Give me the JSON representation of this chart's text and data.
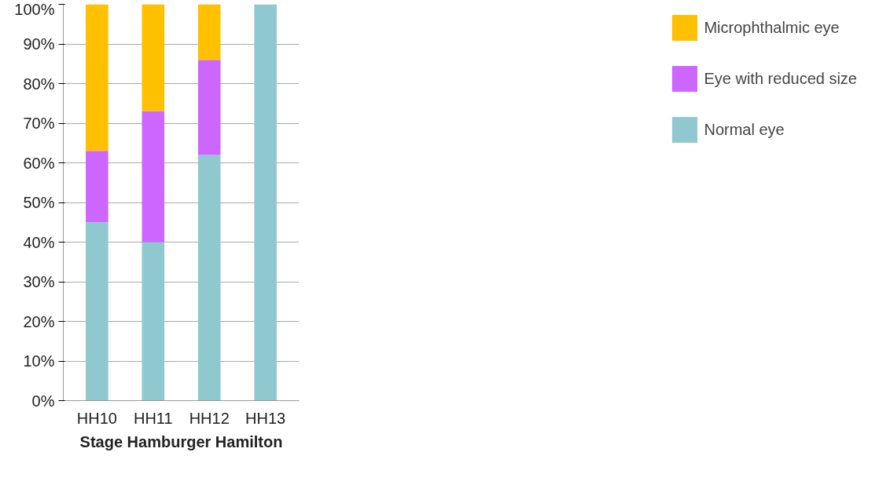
{
  "chart_data": {
    "type": "bar",
    "stacked": true,
    "xlabel": "Stage Hamburger Hamilton",
    "categories": [
      "HH10",
      "HH11",
      "HH12",
      "HH13"
    ],
    "series": [
      {
        "name": "Normal eye",
        "color": "#8fc8ce",
        "values": [
          45,
          40,
          62,
          100
        ]
      },
      {
        "name": "Eye with reduced size",
        "color": "#cc66ff",
        "values": [
          18,
          33,
          24,
          0
        ]
      },
      {
        "name": "Microphthalmic eye",
        "color": "#ffc000",
        "values": [
          37,
          27,
          14,
          0
        ]
      }
    ],
    "ylim": [
      0,
      100
    ],
    "yticks": [
      {
        "value": 0,
        "label": "0%"
      },
      {
        "value": 10,
        "label": "10%"
      },
      {
        "value": 20,
        "label": "20%"
      },
      {
        "value": 30,
        "label": "30%"
      },
      {
        "value": 40,
        "label": "40%"
      },
      {
        "value": 50,
        "label": "50%"
      },
      {
        "value": 60,
        "label": "60%"
      },
      {
        "value": 70,
        "label": "70%"
      },
      {
        "value": 80,
        "label": "80%"
      },
      {
        "value": 90,
        "label": "90%"
      },
      {
        "value": 100,
        "label": "100%"
      }
    ],
    "grid": "y",
    "legend": "right"
  }
}
